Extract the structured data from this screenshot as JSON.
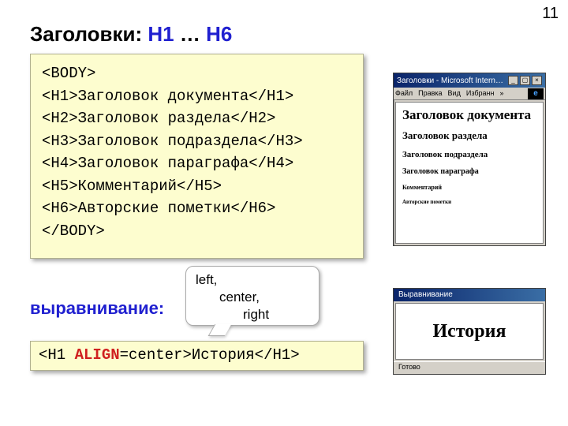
{
  "page_number": "11",
  "title": {
    "prefix": "Заголовки: ",
    "h1": "H1",
    "mid": " … ",
    "h6": "H6"
  },
  "code1": {
    "lines": [
      {
        "tag_open": "<BODY>",
        "text": "",
        "tag_close": ""
      },
      {
        "tag_open": "<H1>",
        "text": "Заголовок документа",
        "tag_close": "</H1>"
      },
      {
        "tag_open": "<H2>",
        "text": "Заголовок раздела",
        "tag_close": "</H2>"
      },
      {
        "tag_open": "<H3>",
        "text": "Заголовок подраздела",
        "tag_close": "</H3>"
      },
      {
        "tag_open": "<H4>",
        "text": "Заголовок параграфа",
        "tag_close": "</H4>"
      },
      {
        "tag_open": "<H5>",
        "text": "Комментарий",
        "tag_close": "</H5>"
      },
      {
        "tag_open": "<H6>",
        "text": "Авторские пометки",
        "tag_close": "</H6>"
      },
      {
        "tag_open": "</BODY>",
        "text": "",
        "tag_close": ""
      }
    ]
  },
  "align_label": "выравнивание:",
  "bubble": {
    "l1": "left,",
    "l2": "center,",
    "l3": "right"
  },
  "code2": {
    "pre": "<H1 ",
    "attr": "ALIGN",
    "post1": "=center>",
    "text": "История",
    "post2": "</H1>"
  },
  "browser1": {
    "title": "Заголовки - Microsoft Intern…",
    "menu": [
      "Файл",
      "Правка",
      "Вид",
      "Избранн",
      "»"
    ],
    "ie_logo": "e",
    "h1": "Заголовок документа",
    "h2": "Заголовок раздела",
    "h3": "Заголовок подраздела",
    "h4": "Заголовок параграфа",
    "h5": "Комментарий",
    "h6": "Авторские пометки",
    "btns": {
      "min": "_",
      "max": "▢",
      "close": "×"
    }
  },
  "browser2": {
    "title": "Выравнивание",
    "center_text": "История",
    "status": "Готово"
  },
  "colors": {
    "codebg": "#fdfdcf",
    "accent": "#2020d0",
    "attr": "#d02020",
    "titlebar_from": "#0a246a",
    "titlebar_to": "#3a6ea5"
  }
}
